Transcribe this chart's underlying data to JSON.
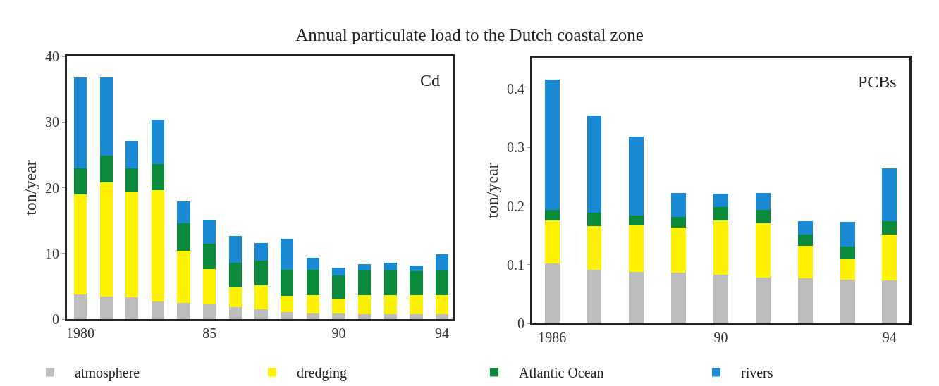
{
  "chart_data": [
    {
      "type": "bar",
      "title": "Annual particulate load to the Dutch coastal zone",
      "ylabel": "ton/year",
      "annotations": [
        "Cd"
      ],
      "stacked": true,
      "legend": "bottom",
      "grid": false,
      "x": [
        1980,
        1981,
        1982,
        1983,
        1984,
        1985,
        1986,
        1987,
        1988,
        1989,
        1990,
        1991,
        1992,
        1993,
        1994
      ],
      "xlim": [
        1979.48,
        1994.41
      ],
      "xticks": [
        {
          "value": 1980,
          "label": "1980"
        },
        {
          "value": 1985,
          "label": "85"
        },
        {
          "value": 1990,
          "label": "90"
        },
        {
          "value": 1994,
          "label": "94"
        }
      ],
      "ylim": [
        0,
        40
      ],
      "yticks": [
        0,
        10,
        20,
        30,
        40
      ],
      "series": [
        {
          "name": "atmosphere",
          "color": "#bdbdbd",
          "values": [
            3.8,
            3.4,
            3.3,
            2.7,
            2.5,
            2.3,
            1.8,
            1.5,
            1.1,
            0.9,
            0.9,
            0.7,
            0.7,
            0.7,
            0.7
          ]
        },
        {
          "name": "dredging",
          "color": "#fff200",
          "values": [
            15.2,
            17.4,
            16.1,
            16.9,
            7.9,
            5.3,
            3.0,
            3.7,
            2.4,
            2.8,
            2.2,
            3.0,
            3.0,
            3.0,
            2.9
          ]
        },
        {
          "name": "Atlantic Ocean",
          "color": "#0a8a3a",
          "values": [
            4.0,
            4.1,
            3.6,
            4.0,
            4.2,
            3.9,
            3.8,
            3.7,
            4.0,
            3.8,
            3.6,
            3.7,
            3.7,
            3.6,
            3.8
          ]
        },
        {
          "name": "rivers",
          "color": "#1a8ad4",
          "values": [
            13.8,
            11.9,
            4.1,
            6.8,
            3.3,
            3.6,
            4.1,
            2.7,
            4.7,
            1.8,
            1.1,
            1.0,
            1.2,
            0.9,
            2.5
          ]
        }
      ]
    },
    {
      "type": "bar",
      "ylabel": "ton/year",
      "annotations": [
        "PCBs"
      ],
      "stacked": true,
      "legend": false,
      "grid": false,
      "x": [
        1986,
        1987,
        1988,
        1989,
        1990,
        1991,
        1992,
        1993,
        1994
      ],
      "xlim": [
        1985.53,
        1994.47
      ],
      "xticks": [
        {
          "value": 1986,
          "label": "1986"
        },
        {
          "value": 1990,
          "label": "90"
        },
        {
          "value": 1994,
          "label": "94"
        }
      ],
      "ylim": [
        0,
        0.453
      ],
      "yticks": [
        0,
        0.1,
        0.2,
        0.3,
        0.4
      ],
      "series": [
        {
          "color": "#bdbdbd",
          "values": [
            0.102,
            0.091,
            0.088,
            0.086,
            0.083,
            0.078,
            0.077,
            0.075,
            0.073
          ]
        },
        {
          "color": "#fff200",
          "values": [
            0.074,
            0.075,
            0.079,
            0.077,
            0.092,
            0.093,
            0.055,
            0.034,
            0.079
          ]
        },
        {
          "color": "#0a8a3a",
          "values": [
            0.018,
            0.023,
            0.017,
            0.019,
            0.023,
            0.022,
            0.019,
            0.022,
            0.022
          ]
        },
        {
          "color": "#1a8ad4",
          "values": [
            0.222,
            0.166,
            0.135,
            0.04,
            0.023,
            0.029,
            0.023,
            0.042,
            0.09
          ]
        }
      ]
    }
  ]
}
